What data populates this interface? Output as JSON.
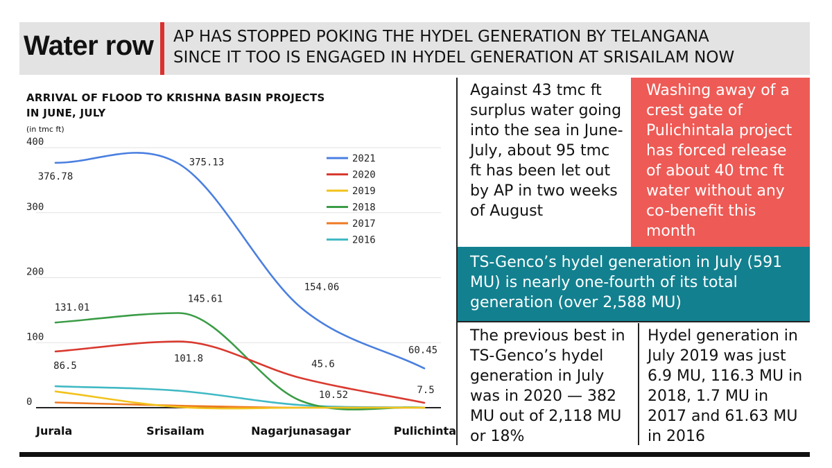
{
  "header": {
    "title": "Water row",
    "subtitle_line1": "AP HAS STOPPED POKING THE HYDEL GENERATION BY TELANGANA",
    "subtitle_line2": "SINCE IT TOO IS ENGAGED IN HYDEL GENERATION AT SRISAILAM NOW"
  },
  "chart_data": {
    "type": "line",
    "title_line1": "ARRIVAL OF FLOOD TO KRISHNA BASIN PROJECTS",
    "title_line2": "IN JUNE, JULY",
    "unit": "(in tmc ft)",
    "categories": [
      "Jurala",
      "Srisailam",
      "Nagarjunasagar",
      "Pulichintala"
    ],
    "ylim": [
      0,
      400
    ],
    "yticks": [
      0,
      100,
      200,
      300,
      400
    ],
    "grid": true,
    "legend_position": "top-right",
    "series": [
      {
        "name": "2021",
        "color": "#4a7fe0",
        "values": [
          376.78,
          375.13,
          154.06,
          60.45
        ]
      },
      {
        "name": "2020",
        "color": "#d93a2f",
        "values": [
          86.5,
          101.8,
          45.6,
          7.5
        ]
      },
      {
        "name": "2019",
        "color": "#f2c21b",
        "values": [
          25,
          1,
          0,
          0
        ]
      },
      {
        "name": "2018",
        "color": "#3a9c46",
        "values": [
          131.01,
          145.61,
          10.52,
          0
        ]
      },
      {
        "name": "2017",
        "color": "#ee7a22",
        "values": [
          8,
          3,
          0,
          0
        ]
      },
      {
        "name": "2016",
        "color": "#40b9c4",
        "values": [
          33,
          26,
          4,
          0
        ]
      }
    ],
    "data_labels": [
      {
        "text": "376.78",
        "series": 0,
        "index": 0
      },
      {
        "text": "375.13",
        "series": 0,
        "index": 1
      },
      {
        "text": "154.06",
        "series": 0,
        "index": 2
      },
      {
        "text": "60.45",
        "series": 0,
        "index": 3
      },
      {
        "text": "86.5",
        "series": 1,
        "index": 0
      },
      {
        "text": "101.8",
        "series": 1,
        "index": 1
      },
      {
        "text": "45.6",
        "series": 1,
        "index": 2
      },
      {
        "text": "7.5",
        "series": 1,
        "index": 3
      },
      {
        "text": "131.01",
        "series": 3,
        "index": 0
      },
      {
        "text": "145.61",
        "series": 3,
        "index": 1
      },
      {
        "text": "10.52",
        "series": 3,
        "index": 2
      }
    ]
  },
  "notes": {
    "surplus": "Against 43 tmc ft surplus water going into the sea in June-July, about 95 tmc ft has been let out by AP in two weeks of August",
    "pulichintala": "Washing away of a crest gate of Pulichintala project has forced release of about 40 tmc ft water without any co-benefit this month",
    "tsgenco": "TS-Genco’s hydel generation in July (591 MU) is nearly one-fourth of its total generation (over 2,588 MU)",
    "previous_best": "The previous best in TS-Genco’s hydel generation in July was in 2020 — 382 MU out of 2,118 MU or 18%",
    "hydel_2019": "Hydel generation in July 2019 was just 6.9 MU, 116.3 MU in 2018, 1.7 MU in 2017 and 61.63 MU in 2016"
  }
}
